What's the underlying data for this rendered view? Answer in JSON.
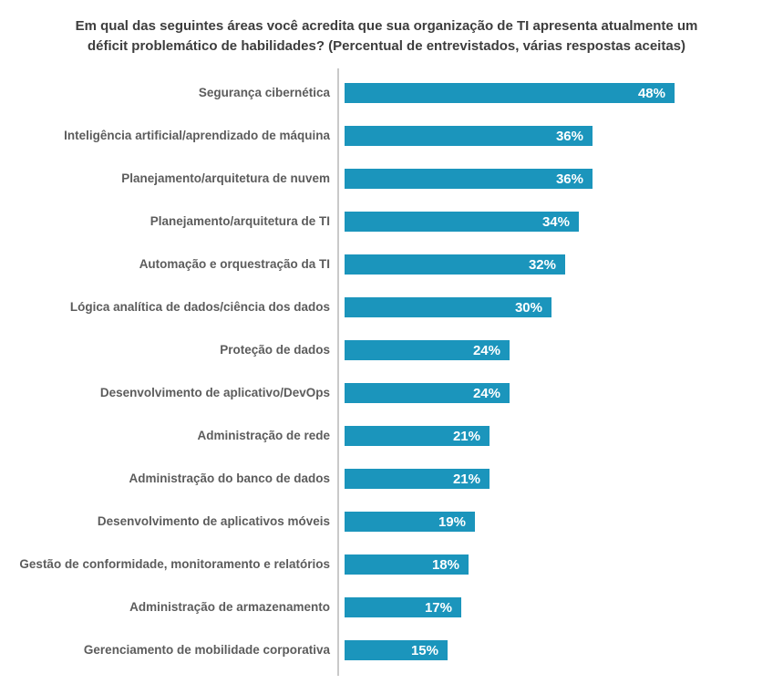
{
  "title": "Em qual das seguintes áreas você acredita que sua organização de TI apresenta atualmente um déficit problemático de habilidades? (Percentual de entrevistados, várias respostas aceitas)",
  "chart_data": {
    "type": "bar",
    "orientation": "horizontal",
    "title": "Em qual das seguintes áreas você acredita que sua organização de TI apresenta atualmente um déficit problemático de habilidades? (Percentual de entrevistados, várias respostas aceitas)",
    "categories": [
      "Segurança cibernética",
      "Inteligência artificial/aprendizado de máquina",
      "Planejamento/arquitetura de nuvem",
      "Planejamento/arquitetura de TI",
      "Automação e orquestração da TI",
      "Lógica analítica de dados/ciência dos dados",
      "Proteção de dados",
      "Desenvolvimento de aplicativo/DevOps",
      "Administração de rede",
      "Administração do banco de dados",
      "Desenvolvimento de aplicativos móveis",
      "Gestão de conformidade, monitoramento e relatórios",
      "Administração de armazenamento",
      "Gerenciamento de mobilidade corporativa"
    ],
    "values": [
      48,
      36,
      36,
      34,
      32,
      30,
      24,
      24,
      21,
      21,
      19,
      18,
      17,
      15
    ],
    "value_labels": [
      "48%",
      "36%",
      "36%",
      "34%",
      "32%",
      "30%",
      "24%",
      "24%",
      "21%",
      "21%",
      "19%",
      "18%",
      "17%",
      "15%"
    ],
    "value_suffix": "%",
    "xlabel": "",
    "ylabel": "",
    "xlim": [
      0,
      62
    ],
    "grid": false,
    "legend": false,
    "bar_color": "#1b95bc",
    "axis_color": "#c9c9c9",
    "label_color": "#5c5c5c",
    "title_color": "#3d3d3d",
    "value_text_color": "#ffffff"
  }
}
